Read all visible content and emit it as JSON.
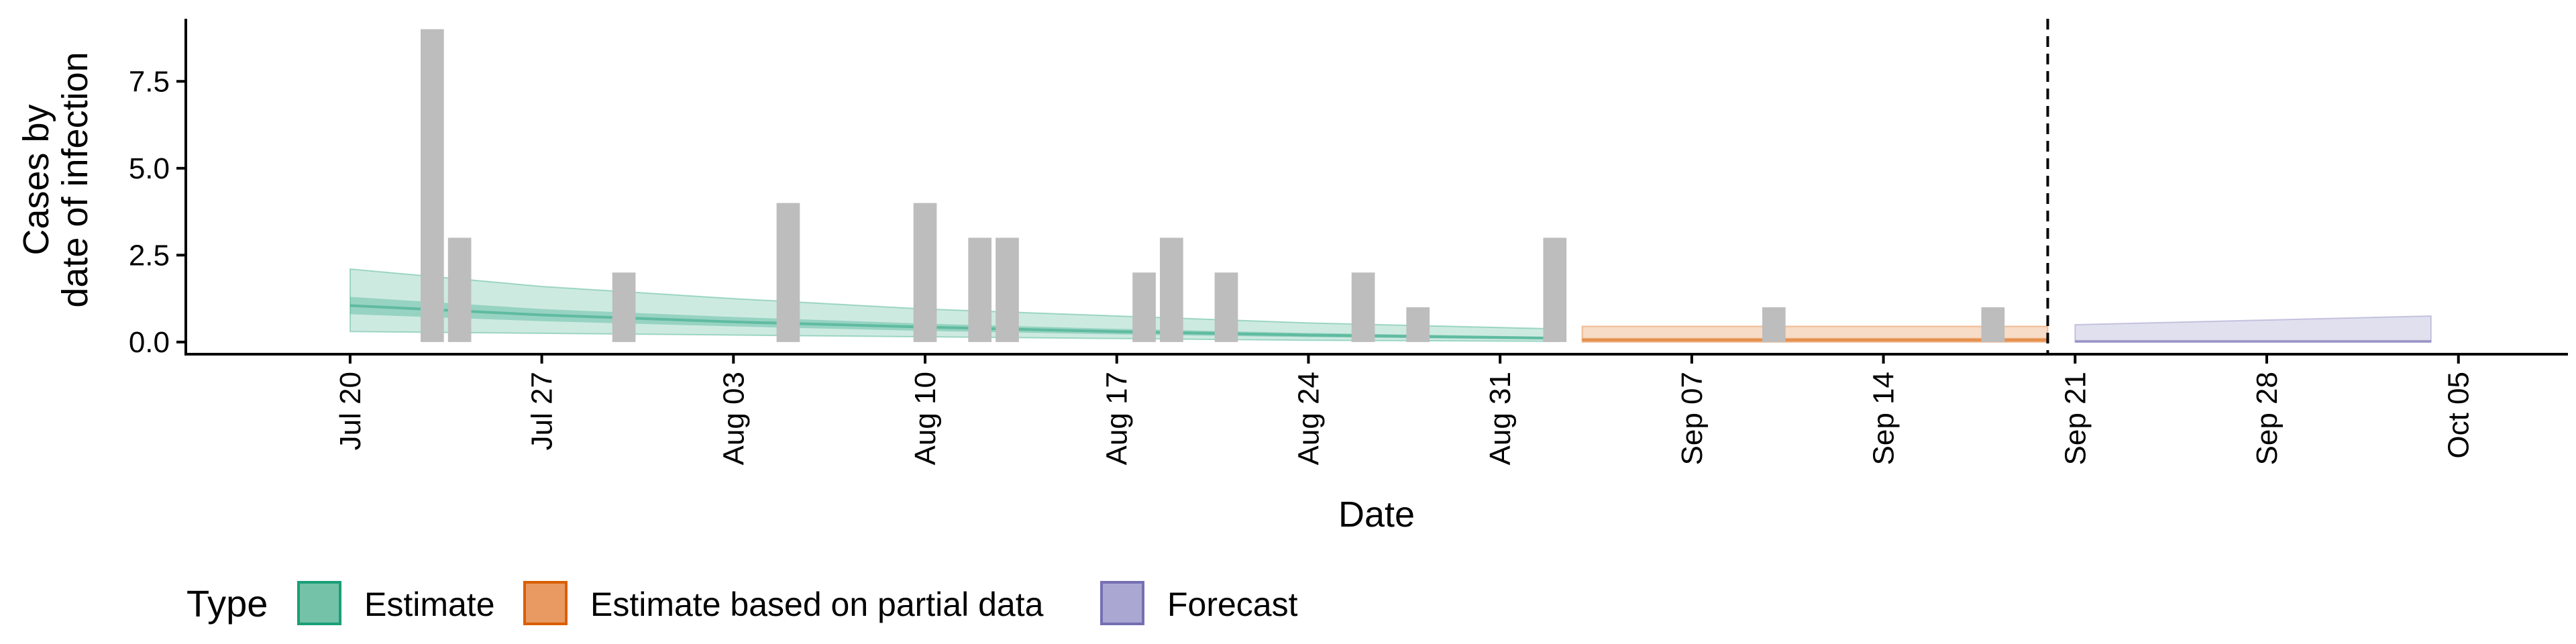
{
  "chart_data": {
    "type": "bar+ribbon",
    "xlabel": "Date",
    "ylabel_lines": [
      "Cases by",
      "date of infection"
    ],
    "x_range": [
      "2020-07-14",
      "2020-10-09"
    ],
    "ylim": [
      -0.35,
      9.3
    ],
    "y_ticks": [
      0.0,
      2.5,
      5.0,
      7.5
    ],
    "y_tick_labels": [
      "0.0",
      "2.5",
      "5.0",
      "7.5"
    ],
    "x_ticks": [
      "2020-07-20",
      "2020-07-27",
      "2020-08-03",
      "2020-08-10",
      "2020-08-17",
      "2020-08-24",
      "2020-08-31",
      "2020-09-07",
      "2020-09-14",
      "2020-09-21",
      "2020-09-28",
      "2020-10-05"
    ],
    "x_tick_labels": [
      "Jul 20",
      "Jul 27",
      "Aug 03",
      "Aug 10",
      "Aug 17",
      "Aug 24",
      "Aug 31",
      "Sep 07",
      "Sep 14",
      "Sep 21",
      "Sep 28",
      "Oct 05"
    ],
    "vline_date": "2020-09-20",
    "bar_color": "#bdbdbd",
    "bars": [
      {
        "date": "2020-07-23",
        "value": 9
      },
      {
        "date": "2020-07-24",
        "value": 3
      },
      {
        "date": "2020-07-30",
        "value": 2
      },
      {
        "date": "2020-08-05",
        "value": 4
      },
      {
        "date": "2020-08-10",
        "value": 4
      },
      {
        "date": "2020-08-12",
        "value": 3
      },
      {
        "date": "2020-08-13",
        "value": 3
      },
      {
        "date": "2020-08-18",
        "value": 2
      },
      {
        "date": "2020-08-19",
        "value": 3
      },
      {
        "date": "2020-08-21",
        "value": 2
      },
      {
        "date": "2020-08-26",
        "value": 2
      },
      {
        "date": "2020-08-28",
        "value": 1
      },
      {
        "date": "2020-09-02",
        "value": 3
      },
      {
        "date": "2020-09-10",
        "value": 1
      },
      {
        "date": "2020-09-18",
        "value": 1
      }
    ],
    "series": [
      {
        "name": "Estimate",
        "color": "#1b9e77",
        "points": [
          {
            "date": "2020-07-20",
            "outer": [
              0.3,
              2.1
            ],
            "inner": [
              0.8,
              1.3
            ],
            "median": 1.05
          },
          {
            "date": "2020-07-27",
            "outer": [
              0.25,
              1.6
            ],
            "inner": [
              0.6,
              0.95
            ],
            "median": 0.78
          },
          {
            "date": "2020-08-03",
            "outer": [
              0.2,
              1.25
            ],
            "inner": [
              0.45,
              0.72
            ],
            "median": 0.58
          },
          {
            "date": "2020-08-10",
            "outer": [
              0.15,
              0.95
            ],
            "inner": [
              0.32,
              0.53
            ],
            "median": 0.43
          },
          {
            "date": "2020-08-17",
            "outer": [
              0.1,
              0.75
            ],
            "inner": [
              0.22,
              0.38
            ],
            "median": 0.3
          },
          {
            "date": "2020-08-24",
            "outer": [
              0.05,
              0.55
            ],
            "inner": [
              0.14,
              0.26
            ],
            "median": 0.2
          },
          {
            "date": "2020-09-02",
            "outer": [
              0.02,
              0.38
            ],
            "inner": [
              0.07,
              0.15
            ],
            "median": 0.11
          }
        ]
      },
      {
        "name": "Estimate based on partial data",
        "color": "#d95f02",
        "points": [
          {
            "date": "2020-09-03",
            "outer": [
              0.0,
              0.45
            ],
            "inner": [
              0.02,
              0.12
            ],
            "median": 0.06
          },
          {
            "date": "2020-09-20",
            "outer": [
              0.0,
              0.45
            ],
            "inner": [
              0.02,
              0.12
            ],
            "median": 0.06
          }
        ]
      },
      {
        "name": "Forecast",
        "color": "#7570b3",
        "points": [
          {
            "date": "2020-09-21",
            "outer": [
              0.0,
              0.5
            ],
            "inner": [
              0.0,
              0.05
            ],
            "median": 0.02
          },
          {
            "date": "2020-10-04",
            "outer": [
              0.0,
              0.75
            ],
            "inner": [
              0.0,
              0.05
            ],
            "median": 0.02
          }
        ]
      }
    ],
    "legend": {
      "title": "Type",
      "placement": "bottom",
      "items": [
        {
          "label": "Estimate",
          "fill": "#74c2a7",
          "stroke": "#1b9e77"
        },
        {
          "label": "Estimate based on partial data",
          "fill": "#e89a62",
          "stroke": "#d95f02"
        },
        {
          "label": "Forecast",
          "fill": "#aaa7d2",
          "stroke": "#7570b3"
        }
      ]
    }
  }
}
